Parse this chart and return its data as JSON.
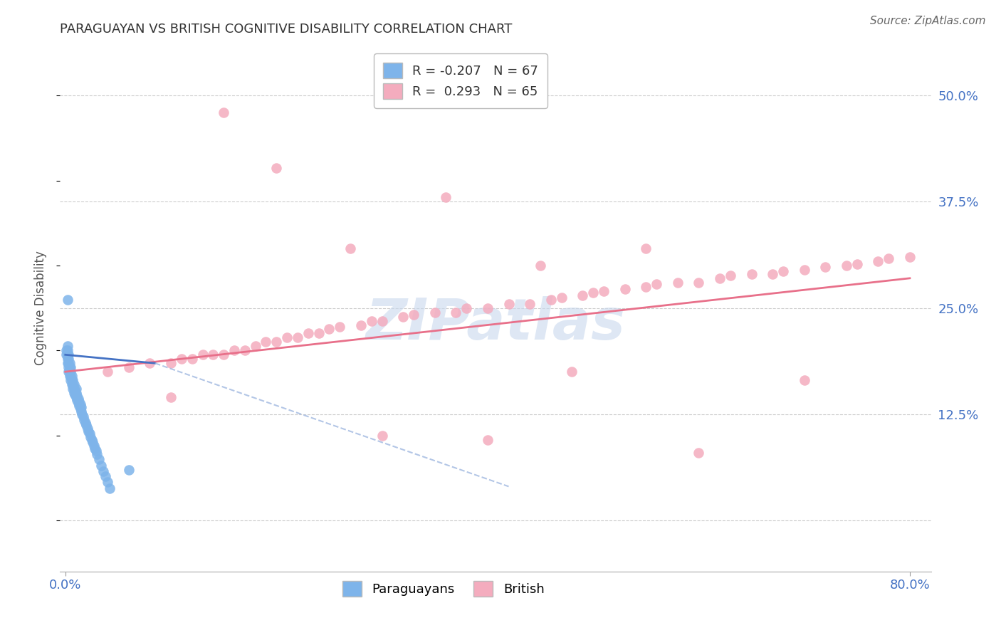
{
  "title": "PARAGUAYAN VS BRITISH COGNITIVE DISABILITY CORRELATION CHART",
  "source": "Source: ZipAtlas.com",
  "ylabel": "Cognitive Disability",
  "blue_color": "#7EB4EA",
  "pink_color": "#F4ACBE",
  "blue_line_color": "#4472C4",
  "pink_line_color": "#E8708A",
  "blue_line_dash_color": "#A0B8E0",
  "watermark_color": "#C8D8EE",
  "legend_r_blue": "-0.207",
  "legend_n_blue": "67",
  "legend_r_pink": " 0.293",
  "legend_n_pink": "65",
  "xtick_labels": [
    "0.0%",
    "80.0%"
  ],
  "ytick_labels": [
    "",
    "12.5%",
    "25.0%",
    "37.5%",
    "50.0%"
  ],
  "ytick_vals": [
    0.0,
    0.125,
    0.25,
    0.375,
    0.5
  ],
  "xlim": [
    -0.005,
    0.82
  ],
  "ylim": [
    -0.06,
    0.56
  ],
  "pink_line": {
    "x0": 0.0,
    "y0": 0.175,
    "x1": 0.8,
    "y1": 0.285
  },
  "blue_line_solid": {
    "x0": 0.0,
    "y0": 0.195,
    "x1": 0.085,
    "y1": 0.185
  },
  "blue_line_dash": {
    "x0": 0.085,
    "y0": 0.185,
    "x1": 0.42,
    "y1": 0.04
  },
  "para_x": [
    0.001,
    0.001,
    0.002,
    0.002,
    0.002,
    0.002,
    0.002,
    0.003,
    0.003,
    0.003,
    0.003,
    0.003,
    0.004,
    0.004,
    0.004,
    0.004,
    0.005,
    0.005,
    0.005,
    0.005,
    0.006,
    0.006,
    0.006,
    0.007,
    0.007,
    0.007,
    0.008,
    0.008,
    0.008,
    0.009,
    0.009,
    0.01,
    0.01,
    0.01,
    0.011,
    0.011,
    0.012,
    0.012,
    0.013,
    0.013,
    0.014,
    0.014,
    0.015,
    0.015,
    0.016,
    0.017,
    0.018,
    0.019,
    0.02,
    0.021,
    0.022,
    0.023,
    0.024,
    0.025,
    0.026,
    0.027,
    0.028,
    0.029,
    0.03,
    0.032,
    0.034,
    0.036,
    0.038,
    0.04,
    0.042,
    0.002,
    0.06
  ],
  "para_y": [
    0.195,
    0.2,
    0.185,
    0.19,
    0.195,
    0.2,
    0.205,
    0.175,
    0.18,
    0.185,
    0.19,
    0.195,
    0.17,
    0.175,
    0.18,
    0.185,
    0.165,
    0.17,
    0.175,
    0.18,
    0.16,
    0.165,
    0.17,
    0.155,
    0.16,
    0.165,
    0.15,
    0.155,
    0.16,
    0.148,
    0.153,
    0.145,
    0.15,
    0.155,
    0.142,
    0.147,
    0.138,
    0.143,
    0.135,
    0.14,
    0.132,
    0.137,
    0.128,
    0.133,
    0.125,
    0.122,
    0.118,
    0.115,
    0.112,
    0.108,
    0.105,
    0.102,
    0.098,
    0.095,
    0.092,
    0.088,
    0.085,
    0.082,
    0.078,
    0.072,
    0.065,
    0.058,
    0.052,
    0.045,
    0.038,
    0.26,
    0.06
  ],
  "brit_x": [
    0.04,
    0.06,
    0.08,
    0.1,
    0.11,
    0.12,
    0.13,
    0.14,
    0.15,
    0.16,
    0.17,
    0.18,
    0.19,
    0.2,
    0.21,
    0.22,
    0.23,
    0.24,
    0.25,
    0.26,
    0.28,
    0.29,
    0.3,
    0.32,
    0.33,
    0.35,
    0.37,
    0.38,
    0.4,
    0.42,
    0.44,
    0.46,
    0.47,
    0.49,
    0.5,
    0.51,
    0.53,
    0.55,
    0.56,
    0.58,
    0.6,
    0.62,
    0.63,
    0.65,
    0.67,
    0.68,
    0.7,
    0.72,
    0.74,
    0.75,
    0.77,
    0.78,
    0.8,
    0.27,
    0.36,
    0.48,
    0.45,
    0.2,
    0.15,
    0.1,
    0.55,
    0.3,
    0.7,
    0.4,
    0.6
  ],
  "brit_y": [
    0.175,
    0.18,
    0.185,
    0.185,
    0.19,
    0.19,
    0.195,
    0.195,
    0.195,
    0.2,
    0.2,
    0.205,
    0.21,
    0.21,
    0.215,
    0.215,
    0.22,
    0.22,
    0.225,
    0.228,
    0.23,
    0.235,
    0.235,
    0.24,
    0.242,
    0.245,
    0.245,
    0.25,
    0.25,
    0.255,
    0.255,
    0.26,
    0.262,
    0.265,
    0.268,
    0.27,
    0.272,
    0.275,
    0.278,
    0.28,
    0.28,
    0.285,
    0.288,
    0.29,
    0.29,
    0.293,
    0.295,
    0.298,
    0.3,
    0.302,
    0.305,
    0.308,
    0.31,
    0.32,
    0.38,
    0.175,
    0.3,
    0.415,
    0.48,
    0.145,
    0.32,
    0.1,
    0.165,
    0.095,
    0.08
  ]
}
